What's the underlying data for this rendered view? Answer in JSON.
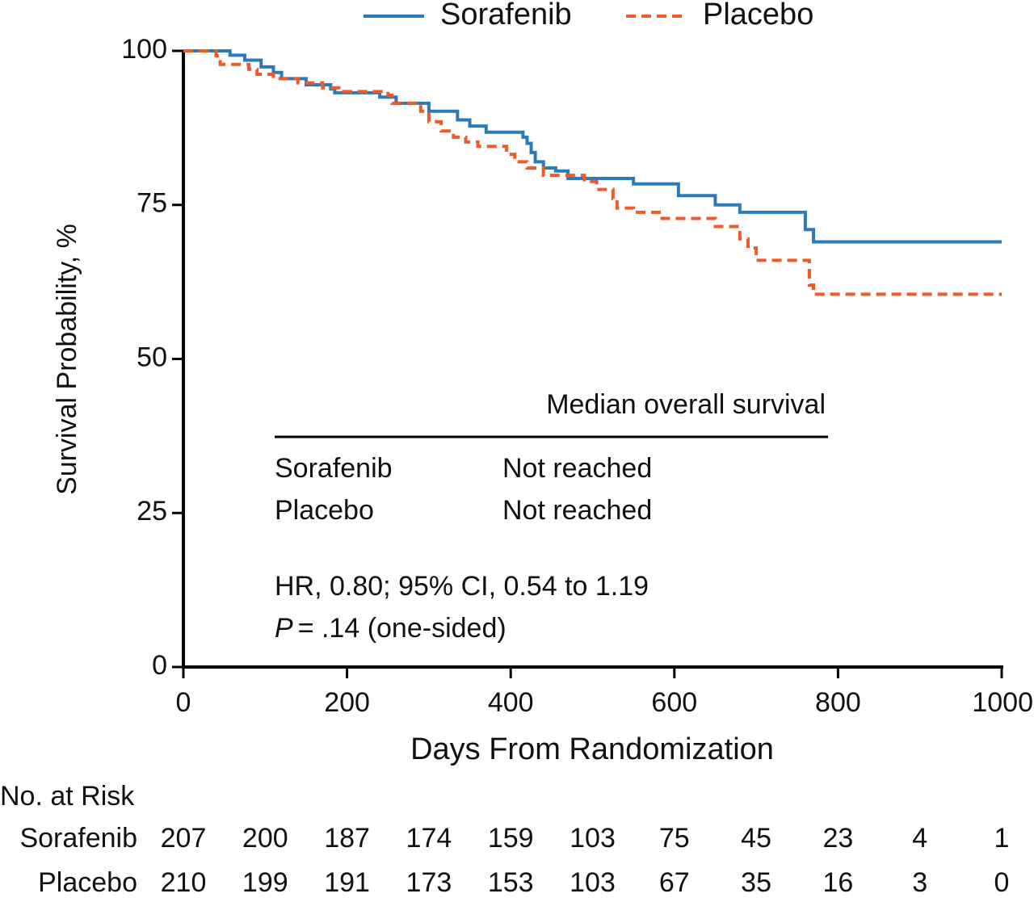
{
  "chart_data": {
    "type": "step",
    "xlabel": "Days From Randomization",
    "ylabel": "Survival Probability, %",
    "xlim": [
      0,
      1000
    ],
    "xticks": [
      0,
      200,
      400,
      600,
      800,
      1000
    ],
    "ylim": [
      0,
      100
    ],
    "yticks": [
      0,
      25,
      50,
      75,
      100
    ],
    "legend": "top",
    "series": [
      {
        "name": "Sorafenib",
        "color": "#2b7bba",
        "line_style": "solid",
        "x": [
          0,
          57,
          75,
          95,
          110,
          120,
          150,
          180,
          185,
          240,
          260,
          300,
          335,
          350,
          370,
          415,
          420,
          425,
          430,
          440,
          455,
          470,
          550,
          605,
          650,
          680,
          760,
          770,
          1000
        ],
        "values": [
          100,
          99.3,
          98.5,
          97.4,
          96.5,
          95.5,
          94.5,
          93.8,
          93.2,
          92.5,
          91.5,
          90.2,
          88.8,
          87.8,
          86.8,
          86,
          85,
          83.5,
          82,
          81,
          80.5,
          79.3,
          78.4,
          76.5,
          75,
          73.8,
          71,
          69,
          69
        ]
      },
      {
        "name": "Placebo",
        "color": "#f05a28",
        "line_style": "dashed",
        "x": [
          0,
          40,
          45,
          80,
          90,
          110,
          140,
          170,
          190,
          250,
          255,
          290,
          300,
          315,
          330,
          345,
          360,
          395,
          405,
          420,
          440,
          490,
          505,
          525,
          530,
          550,
          585,
          650,
          680,
          690,
          700,
          765,
          770,
          1000
        ],
        "values": [
          100,
          99.2,
          97.8,
          97,
          96.2,
          95.5,
          94.8,
          94,
          93.4,
          92.8,
          91.5,
          90.2,
          88.5,
          87,
          86,
          85.2,
          84.5,
          83.2,
          82,
          81,
          79.8,
          78.8,
          77.5,
          76,
          74.5,
          73.8,
          72.8,
          71.5,
          69.5,
          68,
          66,
          62,
          60.5,
          60.5
        ]
      }
    ],
    "inset": {
      "header": "Median overall survival",
      "rows": [
        [
          "Sorafenib",
          "Not reached"
        ],
        [
          "Placebo",
          "Not reached"
        ]
      ],
      "hr": "HR, 0.80; 95% CI, 0.54 to 1.19",
      "p_symbol": "P",
      "p_text": "= .14 (one-sided)"
    },
    "risk_table": {
      "title": "No. at Risk",
      "rows": [
        {
          "name": "Sorafenib",
          "values": [
            207,
            200,
            187,
            174,
            159,
            103,
            75,
            45,
            23,
            4,
            1
          ]
        },
        {
          "name": "Placebo",
          "values": [
            210,
            199,
            191,
            173,
            153,
            103,
            67,
            35,
            16,
            3,
            0
          ]
        }
      ]
    }
  }
}
